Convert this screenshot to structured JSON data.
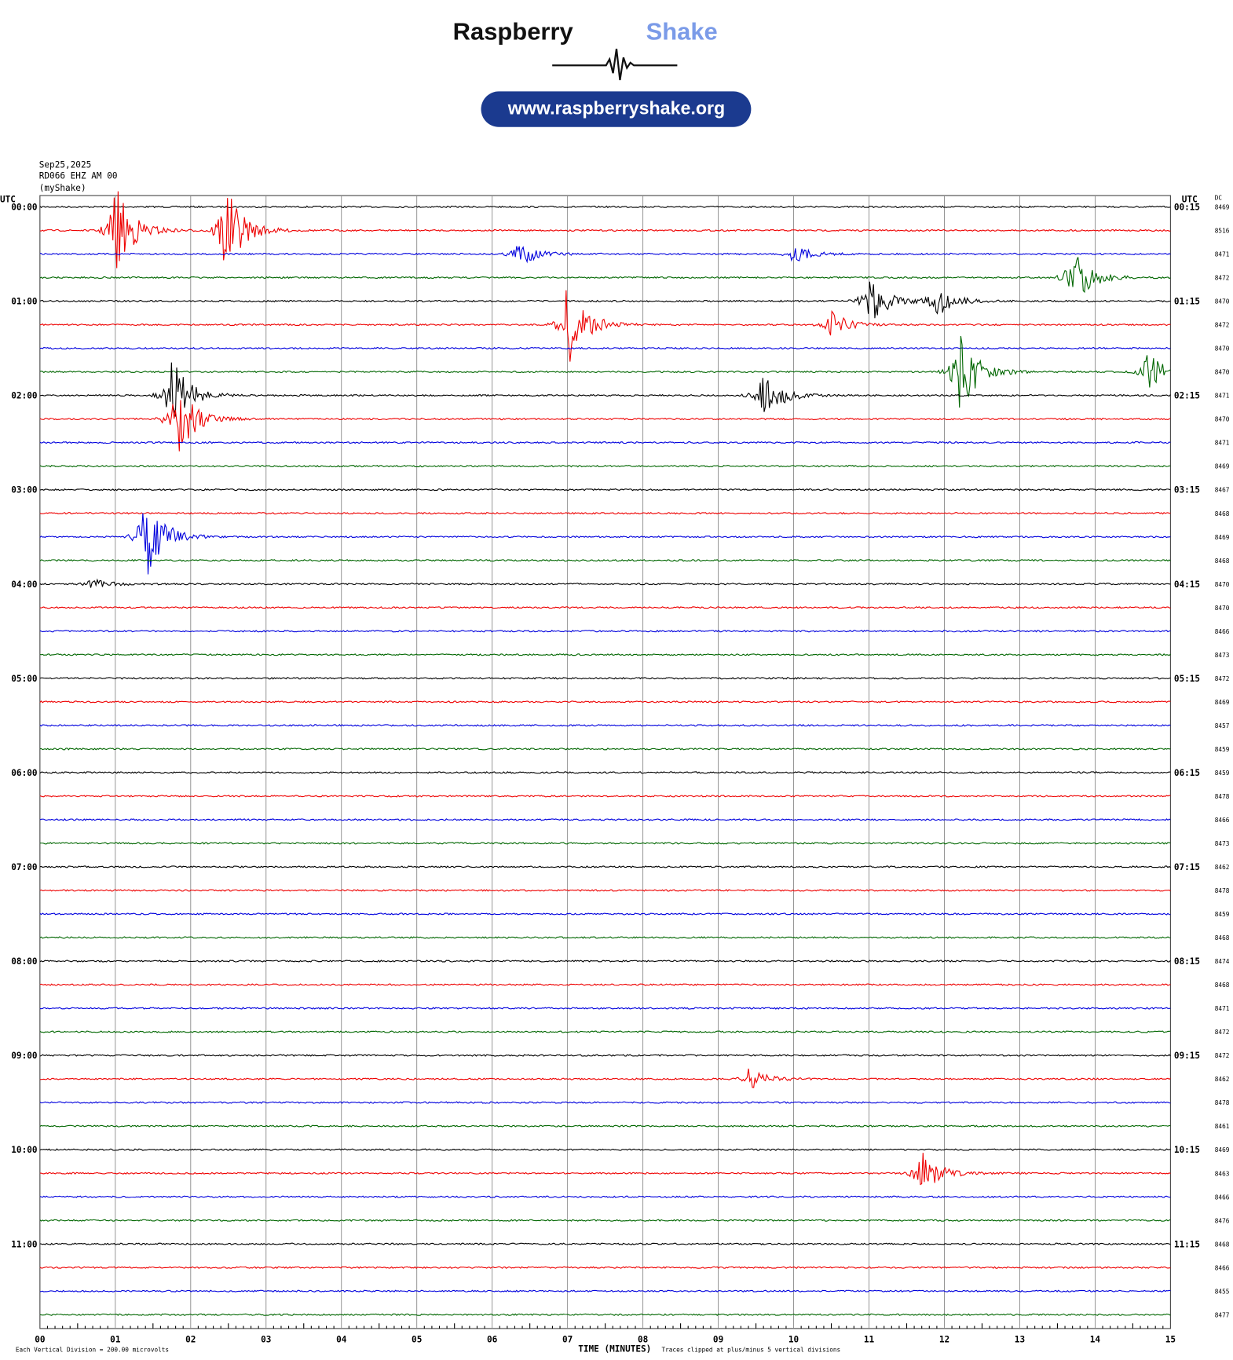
{
  "header": {
    "brand_left": "Raspberry",
    "brand_right": "Shake",
    "url": "www.raspberryshake.org"
  },
  "meta": {
    "date": "Sep25,2025",
    "station": "RD066 EHZ AM 00",
    "owner": "(myShake)"
  },
  "left_axis": {
    "title": "UTC",
    "labels": [
      "00:00",
      "01:00",
      "02:00",
      "03:00",
      "04:00",
      "05:00",
      "06:00",
      "07:00",
      "08:00",
      "09:00",
      "10:00",
      "11:00"
    ]
  },
  "right_axis": {
    "title": "UTC",
    "labels": [
      "00:15",
      "01:15",
      "02:15",
      "03:15",
      "04:15",
      "05:15",
      "06:15",
      "07:15",
      "08:15",
      "09:15",
      "10:15",
      "11:15"
    ]
  },
  "dc": {
    "title": "DC",
    "values": [
      "8469",
      "8516",
      "8471",
      "8472",
      "8470",
      "8472",
      "8470",
      "8470",
      "8471",
      "8470",
      "8471",
      "8469",
      "8467",
      "8468",
      "8469",
      "8468",
      "8470",
      "8470",
      "8466",
      "8473",
      "8472",
      "8469",
      "8457",
      "8459",
      "8459",
      "8478",
      "8466",
      "8473",
      "8462",
      "8478",
      "8459",
      "8468",
      "8474",
      "8468",
      "8471",
      "8472",
      "8472",
      "8462",
      "8478",
      "8461",
      "8469",
      "8463",
      "8466",
      "8476",
      "8468",
      "8466",
      "8455",
      "8477"
    ]
  },
  "x_axis": {
    "title": "TIME (MINUTES)",
    "labels": [
      "00",
      "01",
      "02",
      "03",
      "04",
      "05",
      "06",
      "07",
      "08",
      "09",
      "10",
      "11",
      "12",
      "13",
      "14",
      "15"
    ]
  },
  "footer": {
    "scale": "Each Vertical Division =  200.00 microvolts",
    "clip": "Traces clipped at plus/minus 5 vertical divisions"
  }
}
